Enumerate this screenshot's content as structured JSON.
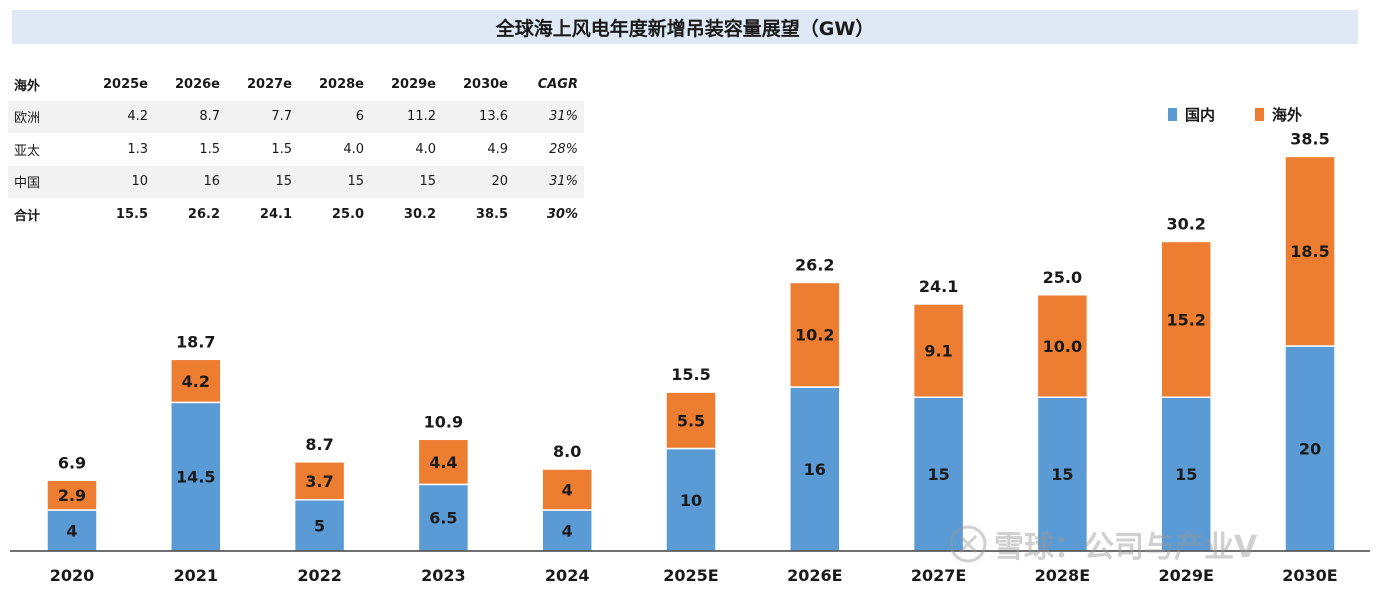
{
  "title": "全球海上风电年度新增吊装容量展望（GW）",
  "table": {
    "header": [
      "海外",
      "2025e",
      "2026e",
      "2027e",
      "2028e",
      "2029e",
      "2030e",
      "CAGR"
    ],
    "rows": [
      {
        "label": "欧洲",
        "values": [
          "4.2",
          "8.7",
          "7.7",
          "6",
          "11.2",
          "13.6"
        ],
        "cagr": "31%"
      },
      {
        "label": "亚太",
        "values": [
          "1.3",
          "1.5",
          "1.5",
          "4.0",
          "4.0",
          "4.9"
        ],
        "cagr": "28%"
      },
      {
        "label": "中国",
        "values": [
          "10",
          "16",
          "15",
          "15",
          "15",
          "20"
        ],
        "cagr": "31%"
      },
      {
        "label": "合计",
        "values": [
          "15.5",
          "26.2",
          "24.1",
          "25.0",
          "30.2",
          "38.5"
        ],
        "cagr": "30%"
      }
    ]
  },
  "watermark": "雪球：公司与产业V",
  "chart_data": {
    "type": "bar",
    "stacked": true,
    "categories": [
      "2020",
      "2021",
      "2022",
      "2023",
      "2024",
      "2025E",
      "2026E",
      "2027E",
      "2028E",
      "2029E",
      "2030E"
    ],
    "series": [
      {
        "name": "国内",
        "color": "#5b9bd5",
        "values": [
          4,
          14.5,
          5,
          6.5,
          4,
          10,
          16,
          15,
          15,
          15,
          20
        ],
        "labels": [
          "4",
          "14.5",
          "5",
          "6.5",
          "4",
          "10",
          "16",
          "15",
          "15",
          "15",
          "20"
        ]
      },
      {
        "name": "海外",
        "color": "#ed7d31",
        "values": [
          2.9,
          4.2,
          3.7,
          4.4,
          4,
          5.5,
          10.2,
          9.1,
          10.0,
          15.2,
          18.5
        ],
        "labels": [
          "2.9",
          "4.2",
          "3.7",
          "4.4",
          "4",
          "5.5",
          "10.2",
          "9.1",
          "10.0",
          "15.2",
          "18.5"
        ]
      }
    ],
    "totals": [
      "6.9",
      "18.7",
      "8.7",
      "10.9",
      "8.0",
      "15.5",
      "26.2",
      "24.1",
      "25.0",
      "30.2",
      "38.5"
    ],
    "ylim": [
      0,
      40
    ],
    "legend_position": "top-right",
    "grid": false
  }
}
